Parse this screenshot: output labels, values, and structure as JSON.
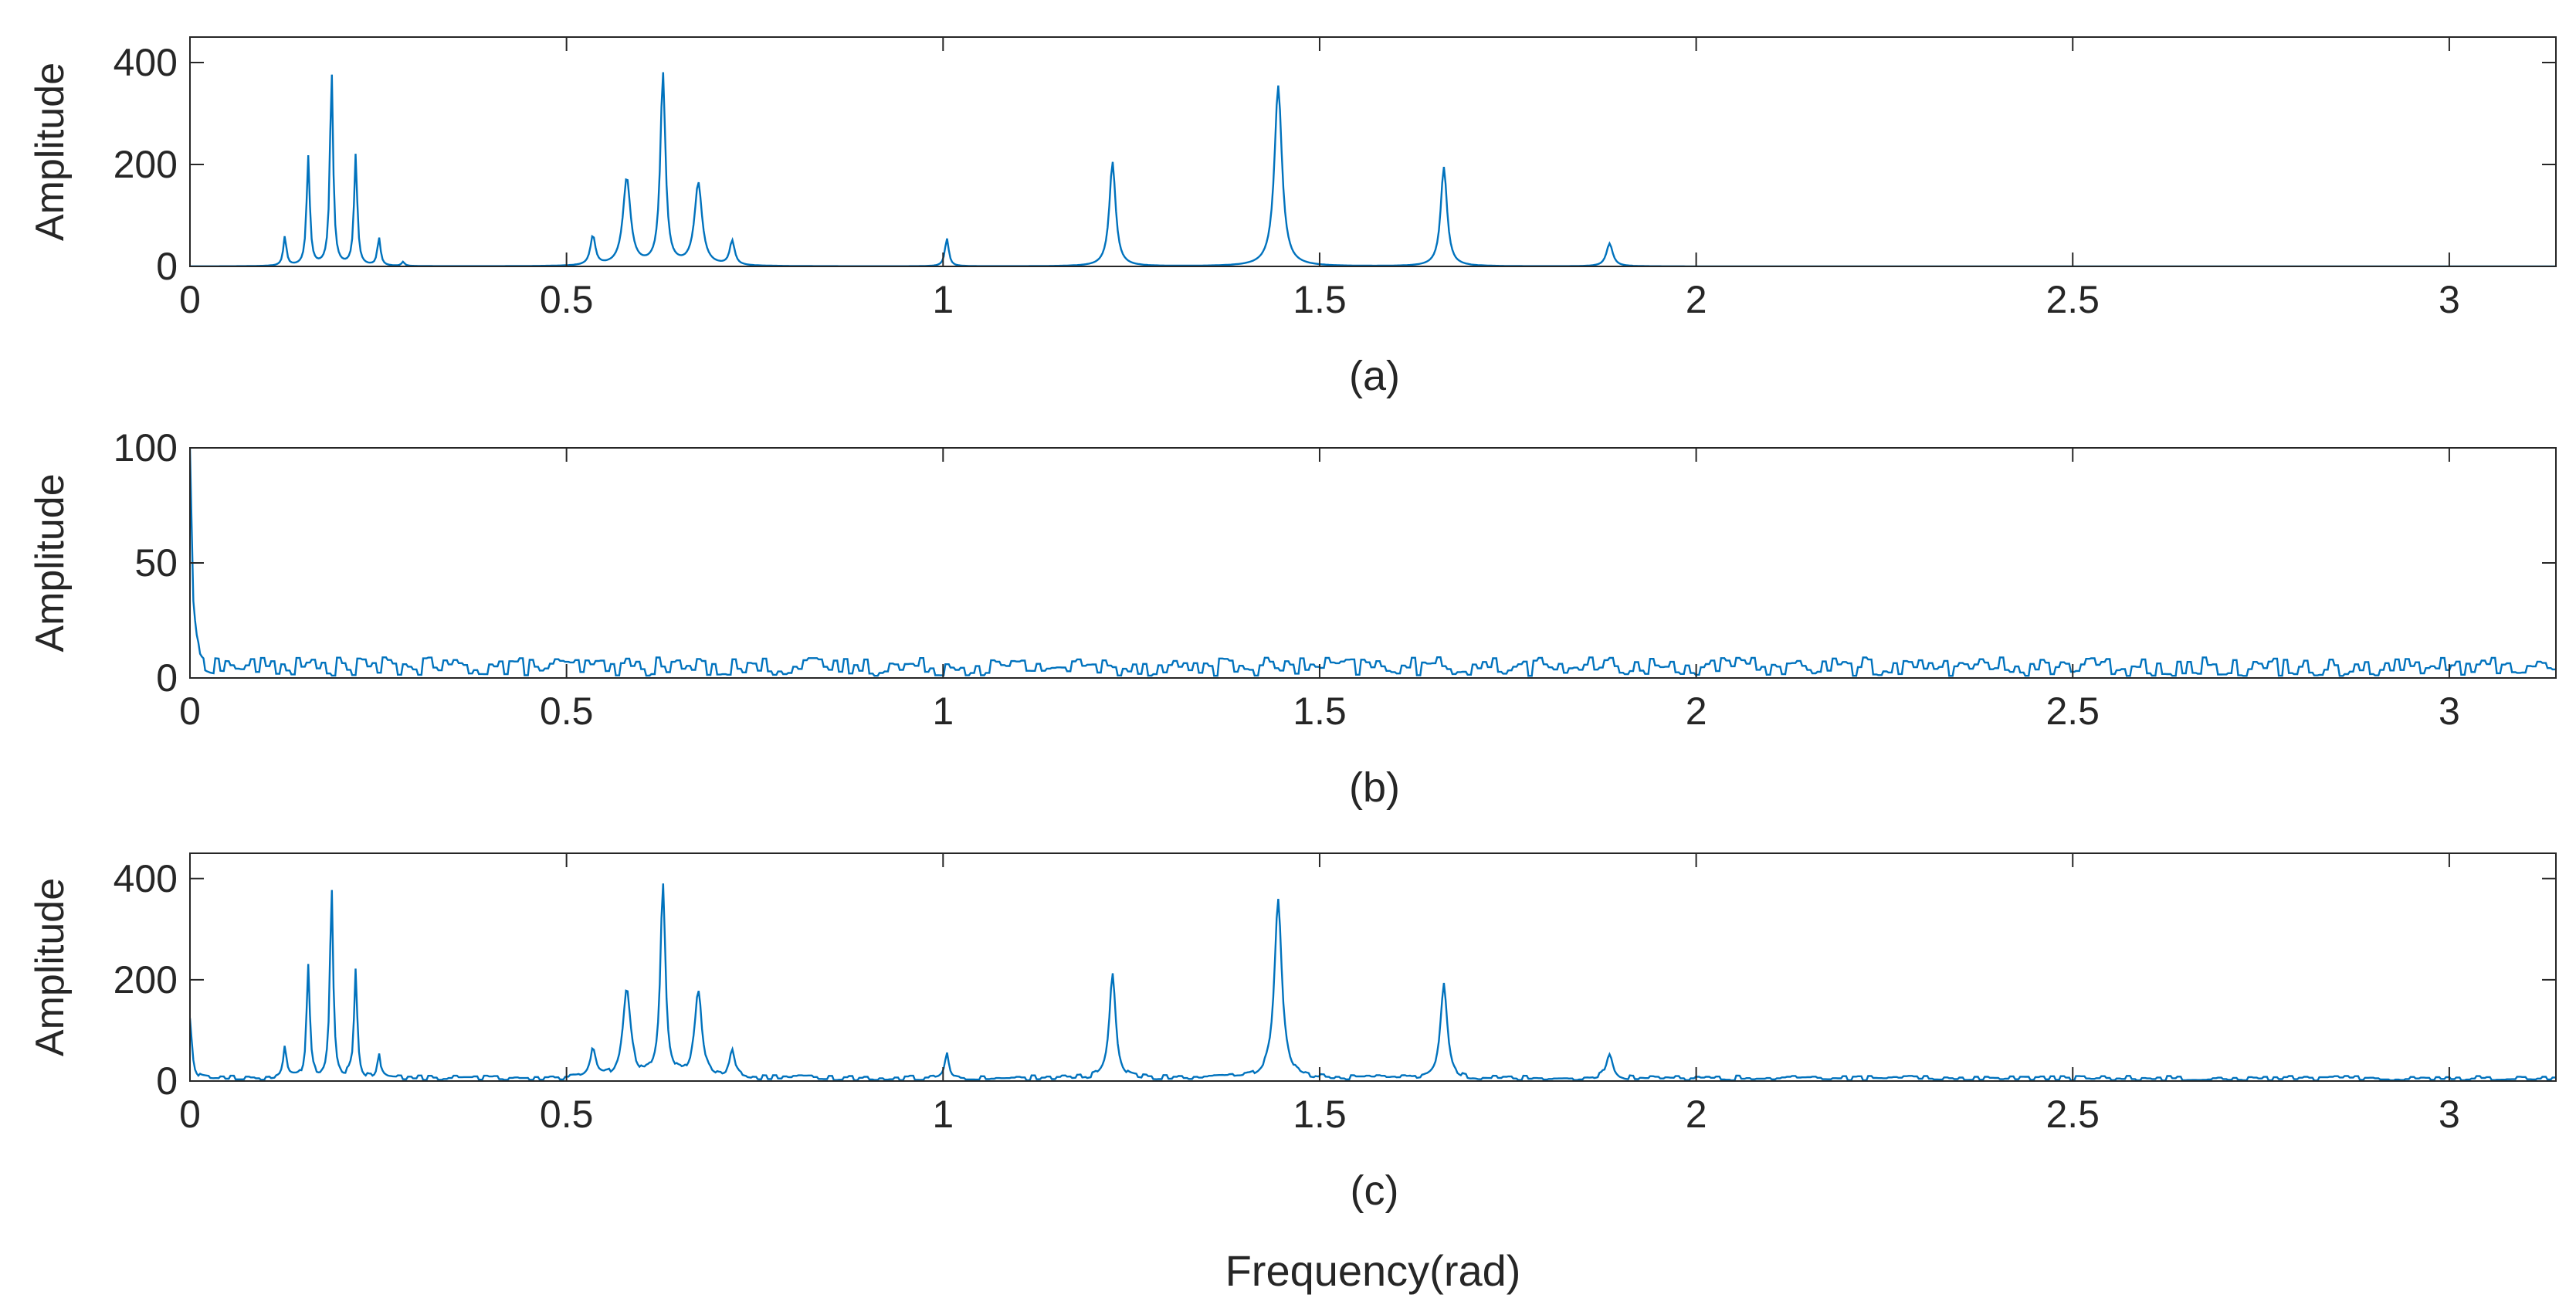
{
  "chart_data": [
    {
      "type": "line",
      "panel": "(a)",
      "ylabel": "Amplitude",
      "xlabel": "",
      "xlim": [
        0,
        3.1416
      ],
      "ylim": [
        0,
        450
      ],
      "xticks": [
        0,
        0.5,
        1,
        1.5,
        2,
        2.5,
        3
      ],
      "xtick_labels": [
        "0",
        "0.5",
        "1",
        "1.5",
        "2",
        "2.5",
        "3"
      ],
      "yticks": [
        0,
        200,
        400
      ],
      "ytick_labels": [
        "0",
        "200",
        "400"
      ],
      "noise_level": 0,
      "grid": false,
      "peaks": [
        {
          "x": 0.126,
          "y": 58,
          "w": 0.0025
        },
        {
          "x": 0.157,
          "y": 215,
          "w": 0.0025
        },
        {
          "x": 0.188,
          "y": 388,
          "w": 0.0025
        },
        {
          "x": 0.22,
          "y": 218,
          "w": 0.0025
        },
        {
          "x": 0.251,
          "y": 55,
          "w": 0.0025
        },
        {
          "x": 0.283,
          "y": 8,
          "w": 0.0025
        },
        {
          "x": 0.535,
          "y": 58,
          "w": 0.004
        },
        {
          "x": 0.58,
          "y": 172,
          "w": 0.006
        },
        {
          "x": 0.628,
          "y": 378,
          "w": 0.004
        },
        {
          "x": 0.675,
          "y": 162,
          "w": 0.006
        },
        {
          "x": 0.72,
          "y": 48,
          "w": 0.004
        },
        {
          "x": 1.005,
          "y": 55,
          "w": 0.003
        },
        {
          "x": 1.225,
          "y": 205,
          "w": 0.005
        },
        {
          "x": 1.445,
          "y": 355,
          "w": 0.006
        },
        {
          "x": 1.665,
          "y": 195,
          "w": 0.005
        },
        {
          "x": 1.885,
          "y": 45,
          "w": 0.005
        }
      ]
    },
    {
      "type": "line",
      "panel": "(b)",
      "ylabel": "Amplitude",
      "xlabel": "",
      "xlim": [
        0,
        3.1416
      ],
      "ylim": [
        0,
        100
      ],
      "xticks": [
        0,
        0.5,
        1,
        1.5,
        2,
        2.5,
        3
      ],
      "xtick_labels": [
        "0",
        "0.5",
        "1",
        "1.5",
        "2",
        "2.5",
        "3"
      ],
      "yticks": [
        0,
        50,
        100
      ],
      "ytick_labels": [
        "0",
        "50",
        "100"
      ],
      "noise_level": 6,
      "grid": false,
      "peaks": [
        {
          "x": 0.0,
          "y": 98,
          "w": 0.003
        }
      ]
    },
    {
      "type": "line",
      "panel": "(c)",
      "ylabel": "Amplitude",
      "xlabel": "Frequency(rad)",
      "xlim": [
        0,
        3.1416
      ],
      "ylim": [
        0,
        450
      ],
      "xticks": [
        0,
        0.5,
        1,
        1.5,
        2,
        2.5,
        3
      ],
      "xtick_labels": [
        "0",
        "0.5",
        "1",
        "1.5",
        "2",
        "2.5",
        "3"
      ],
      "yticks": [
        0,
        200,
        400
      ],
      "ytick_labels": [
        "0",
        "200",
        "400"
      ],
      "noise_level": 7,
      "grid": false,
      "peaks": [
        {
          "x": 0.0,
          "y": 120,
          "w": 0.003
        },
        {
          "x": 0.126,
          "y": 60,
          "w": 0.0025
        },
        {
          "x": 0.157,
          "y": 218,
          "w": 0.0025
        },
        {
          "x": 0.188,
          "y": 380,
          "w": 0.0025
        },
        {
          "x": 0.22,
          "y": 215,
          "w": 0.0025
        },
        {
          "x": 0.251,
          "y": 50,
          "w": 0.0025
        },
        {
          "x": 0.535,
          "y": 60,
          "w": 0.004
        },
        {
          "x": 0.58,
          "y": 172,
          "w": 0.006
        },
        {
          "x": 0.628,
          "y": 378,
          "w": 0.004
        },
        {
          "x": 0.675,
          "y": 165,
          "w": 0.006
        },
        {
          "x": 0.72,
          "y": 52,
          "w": 0.004
        },
        {
          "x": 1.005,
          "y": 50,
          "w": 0.003
        },
        {
          "x": 1.225,
          "y": 205,
          "w": 0.005
        },
        {
          "x": 1.445,
          "y": 352,
          "w": 0.006
        },
        {
          "x": 1.665,
          "y": 192,
          "w": 0.005
        },
        {
          "x": 1.885,
          "y": 48,
          "w": 0.005
        }
      ]
    }
  ],
  "style": {
    "line_color": "#0072BD",
    "axis_color": "#262626",
    "background": "#ffffff"
  }
}
